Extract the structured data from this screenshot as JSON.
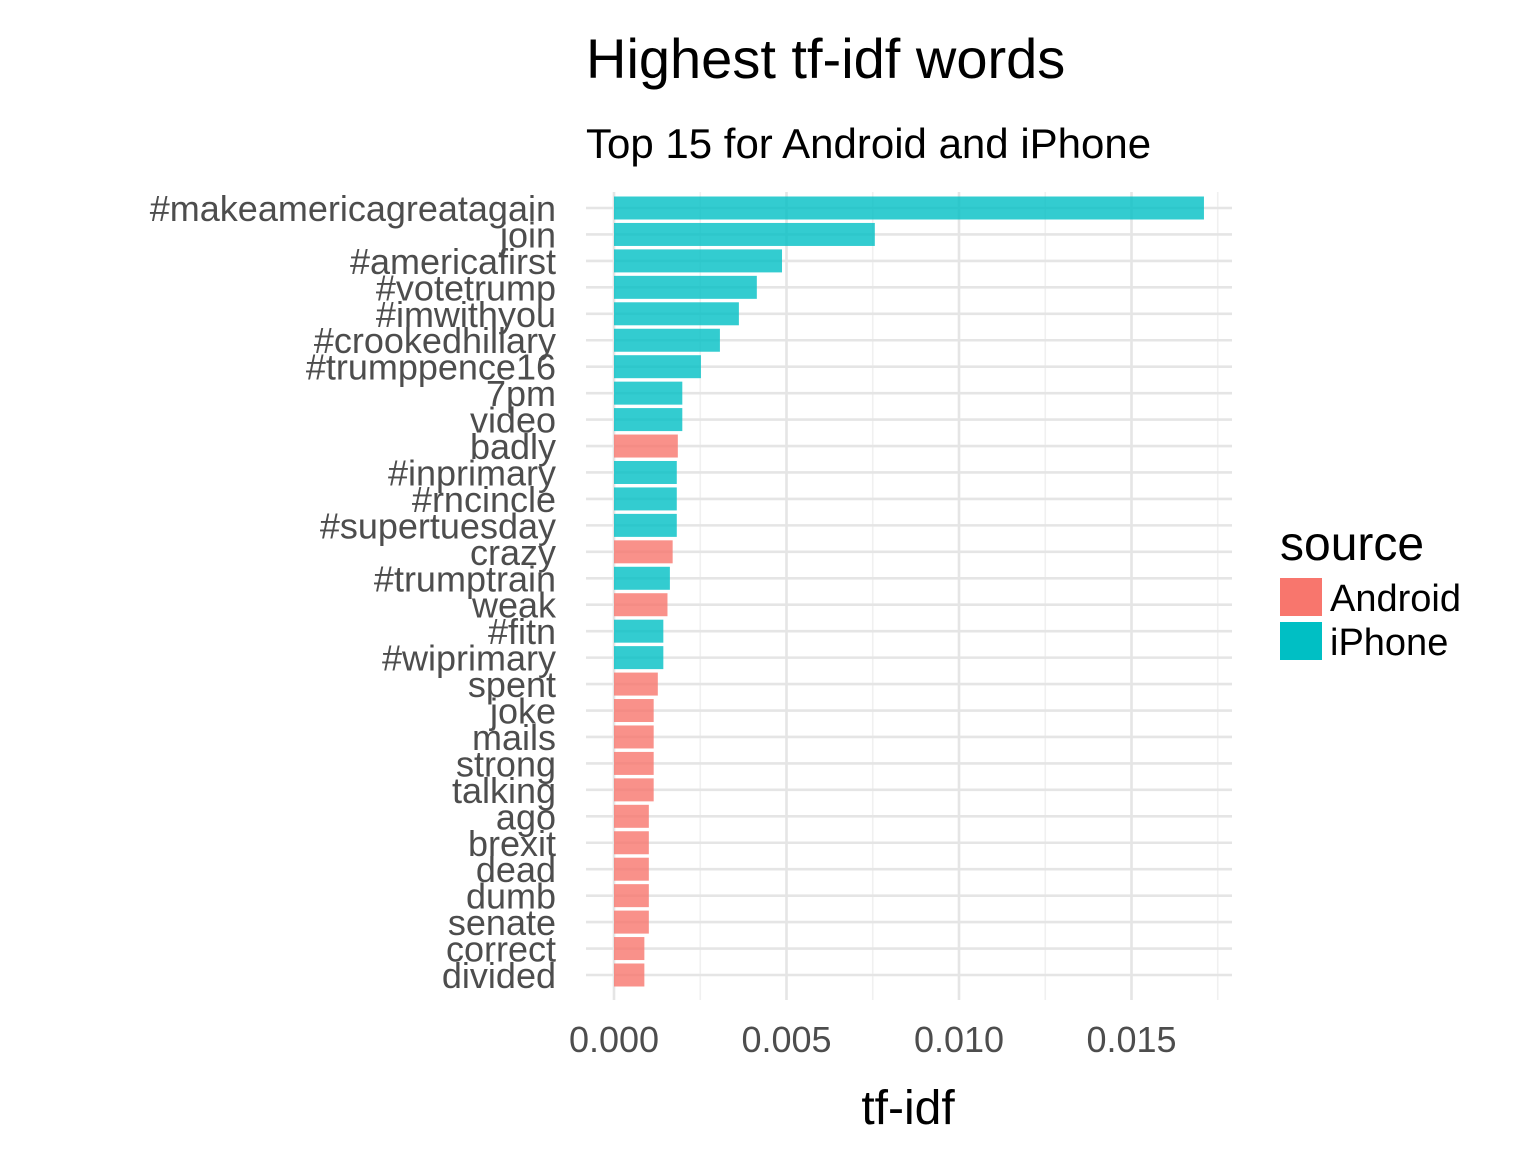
{
  "chart_data": {
    "type": "bar",
    "orientation": "horizontal",
    "title": "Highest tf-idf words",
    "subtitle": "Top 15 for Android and iPhone",
    "xlabel": "tf-idf",
    "ylabel": "",
    "xlim": [
      0,
      0.0175
    ],
    "x_ticks": [
      "0.000",
      "0.005",
      "0.010",
      "0.015"
    ],
    "x_tick_values": [
      0,
      0.005,
      0.01,
      0.015
    ],
    "grid": true,
    "legend": {
      "title": "source",
      "placement": "right",
      "entries": [
        {
          "name": "Android",
          "color": "#F8766D"
        },
        {
          "name": "iPhone",
          "color": "#00BFC4"
        }
      ]
    },
    "bars": [
      {
        "word": "#makeamericagreatagain",
        "source": "iPhone",
        "value": 0.0171
      },
      {
        "word": "join",
        "source": "iPhone",
        "value": 0.00756
      },
      {
        "word": "#americafirst",
        "source": "iPhone",
        "value": 0.00487
      },
      {
        "word": "#votetrump",
        "source": "iPhone",
        "value": 0.00414
      },
      {
        "word": "#imwithyou",
        "source": "iPhone",
        "value": 0.00362
      },
      {
        "word": "#crookedhillary",
        "source": "iPhone",
        "value": 0.00307
      },
      {
        "word": "#trumppence16",
        "source": "iPhone",
        "value": 0.00252
      },
      {
        "word": "7pm",
        "source": "iPhone",
        "value": 0.00198
      },
      {
        "word": "video",
        "source": "iPhone",
        "value": 0.00198
      },
      {
        "word": "badly",
        "source": "Android",
        "value": 0.00185
      },
      {
        "word": "#inprimary",
        "source": "iPhone",
        "value": 0.00182
      },
      {
        "word": "#rncincle",
        "source": "iPhone",
        "value": 0.00182
      },
      {
        "word": "#supertuesday",
        "source": "iPhone",
        "value": 0.00182
      },
      {
        "word": "crazy",
        "source": "Android",
        "value": 0.0017
      },
      {
        "word": "#trumptrain",
        "source": "iPhone",
        "value": 0.00162
      },
      {
        "word": "weak",
        "source": "Android",
        "value": 0.00155
      },
      {
        "word": "#fitn",
        "source": "iPhone",
        "value": 0.00143
      },
      {
        "word": "#wiprimary",
        "source": "iPhone",
        "value": 0.00143
      },
      {
        "word": "spent",
        "source": "Android",
        "value": 0.00127
      },
      {
        "word": "joke",
        "source": "Android",
        "value": 0.00115
      },
      {
        "word": "mails",
        "source": "Android",
        "value": 0.00115
      },
      {
        "word": "strong",
        "source": "Android",
        "value": 0.00115
      },
      {
        "word": "talking",
        "source": "Android",
        "value": 0.00115
      },
      {
        "word": "ago",
        "source": "Android",
        "value": 0.00101
      },
      {
        "word": "brexit",
        "source": "Android",
        "value": 0.00101
      },
      {
        "word": "dead",
        "source": "Android",
        "value": 0.00101
      },
      {
        "word": "dumb",
        "source": "Android",
        "value": 0.00101
      },
      {
        "word": "senate",
        "source": "Android",
        "value": 0.00101
      },
      {
        "word": "correct",
        "source": "Android",
        "value": 0.00088
      },
      {
        "word": "divided",
        "source": "Android",
        "value": 0.00088
      }
    ]
  }
}
